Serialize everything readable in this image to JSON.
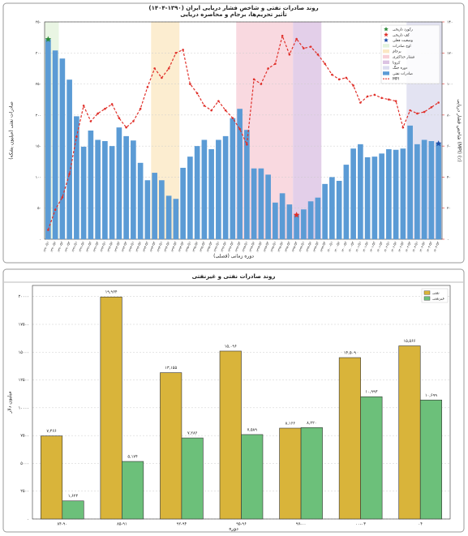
{
  "chart_data": [
    {
      "type": "combo",
      "title": "روند صادرات نفتی و شاخص فشار دریایی ایران (۱۳۹۰-۱۴۰۴)",
      "subtitle": "تأثیر تحریم‌ها، برجام و محاصره دریایی",
      "x_label": "دوره زمانی (فصلی)",
      "y_label": "صادرات نفتی (میلیون بشکه)",
      "y2_label": "شاخص فشار دریایی (MPI) (٪)",
      "categories": [
        "۱۳۹۰-Q۱",
        "۱۳۹۰-Q۲",
        "۱۳۹۰-Q۳",
        "۱۳۹۰-Q۴",
        "۱۳۹۱-Q۱",
        "۱۳۹۱-Q۲",
        "۱۳۹۱-Q۳",
        "۱۳۹۱-Q۴",
        "۱۳۹۲-Q۱",
        "۱۳۹۲-Q۲",
        "۱۳۹۲-Q۳",
        "۱۳۹۲-Q۴",
        "۱۳۹۳-Q۱",
        "۱۳۹۳-Q۲",
        "۱۳۹۳-Q۳",
        "۱۳۹۳-Q۴",
        "۱۳۹۴-Q۱",
        "۱۳۹۴-Q۲",
        "۱۳۹۴-Q۳",
        "۱۳۹۴-Q۴",
        "۱۳۹۵-Q۱",
        "۱۳۹۵-Q۲",
        "۱۳۹۵-Q۳",
        "۱۳۹۵-Q۴",
        "۱۳۹۶-Q۱",
        "۱۳۹۶-Q۲",
        "۱۳۹۶-Q۳",
        "۱۳۹۶-Q۴",
        "۱۳۹۷-Q۱",
        "۱۳۹۷-Q۲",
        "۱۳۹۷-Q۳",
        "۱۳۹۷-Q۴",
        "۱۳۹۸-Q۱",
        "۱۳۹۸-Q۲",
        "۱۳۹۸-Q۳",
        "۱۳۹۸-Q۴",
        "۱۳۹۹-Q۱",
        "۱۳۹۹-Q۲",
        "۱۳۹۹-Q۳",
        "۱۳۹۹-Q۴",
        "۱۴۰۰-Q۱",
        "۱۴۰۰-Q۲",
        "۱۴۰۰-Q۳",
        "۱۴۰۰-Q۴",
        "۱۴۰۱-Q۱",
        "۱۴۰۱-Q۲",
        "۱۴۰۱-Q۳",
        "۱۴۰۱-Q۴",
        "۱۴۰۲-Q۱",
        "۱۴۰۲-Q۲",
        "۱۴۰۲-Q۳",
        "۱۴۰۲-Q۴",
        "۱۴۰۳-Q۱",
        "۱۴۰۳-Q۲",
        "۱۴۰۳-Q۳",
        "۱۴۰۳-Q۴"
      ],
      "series": [
        {
          "name": "صادرات نفتی",
          "color": "#5b9bd5",
          "values": [
            322,
            304,
            291,
            257,
            198,
            149,
            175,
            160,
            158,
            150,
            180,
            166,
            159,
            123,
            95,
            107,
            95,
            70,
            65,
            115,
            133,
            150,
            160,
            145,
            160,
            166,
            195,
            210,
            176,
            114,
            114,
            104,
            59,
            74,
            56,
            39,
            48,
            61,
            67,
            89,
            100,
            94,
            120,
            146,
            153,
            132,
            133,
            138,
            145,
            144,
            146,
            183,
            153,
            160,
            158,
            154
          ]
        },
        {
          "name": "MPI",
          "color": "#e0302a",
          "axis": "y2",
          "values": [
            6,
            19,
            27,
            42,
            66,
            86,
            76,
            81,
            84,
            87,
            78,
            72,
            76,
            84,
            98,
            110,
            104,
            110,
            120,
            122,
            100,
            94,
            86,
            83,
            89,
            83,
            78,
            71,
            61,
            103,
            100,
            110,
            113,
            131,
            119,
            129,
            123,
            124,
            119,
            113,
            106,
            103,
            104,
            99,
            88,
            92,
            93,
            91,
            90,
            89,
            72,
            83,
            81,
            82,
            85,
            88
          ]
        }
      ],
      "ylim": [
        0,
        350
      ],
      "yticks": [
        {
          "value": 0,
          "label": "۰"
        },
        {
          "value": 50,
          "label": "۵۰"
        },
        {
          "value": 100,
          "label": "۱۰۰"
        },
        {
          "value": 150,
          "label": "۱۵۰"
        },
        {
          "value": 200,
          "label": "۲۰۰"
        },
        {
          "value": 250,
          "label": "۲۵۰"
        },
        {
          "value": 300,
          "label": "۳۰۰"
        },
        {
          "value": 350,
          "label": "۳۵۰"
        }
      ],
      "y2lim": [
        0,
        140
      ],
      "y2ticks": [
        {
          "value": 0,
          "label": "۰"
        },
        {
          "value": 20,
          "label": "۲۰"
        },
        {
          "value": 40,
          "label": "۴۰"
        },
        {
          "value": 60,
          "label": "۶۰"
        },
        {
          "value": 80,
          "label": "۸۰"
        },
        {
          "value": 100,
          "label": "۱۰۰"
        },
        {
          "value": 120,
          "label": "۱۲۰"
        },
        {
          "value": 140,
          "label": "۱۴۰"
        }
      ],
      "grid": true,
      "legend": "upper right",
      "periods": [
        {
          "name": "اوج صادرات",
          "color": "#e3f3dc",
          "from": "۱۳۹۰-Q۱",
          "to": "۱۳۹۰-Q۲"
        },
        {
          "name": "برجام",
          "color": "#fbe8c4",
          "from": "۱۳۹۳-Q۴",
          "to": "۱۳۹۴-Q۳"
        },
        {
          "name": "فشار حداکثری",
          "color": "#f7d0d8",
          "from": "۱۳۹۶-Q۴",
          "to": "۱۳۹۸-Q۳"
        },
        {
          "name": "کرونا",
          "color": "#dcc3e3",
          "from": "۱۳۹۸-Q۴",
          "to": "۱۳۹۹-Q۳"
        },
        {
          "name": "دوره جنگ",
          "color": "#dcdcef",
          "from": "۱۴۰۲-Q۴",
          "to": "۱۴۰۳-Q۴"
        }
      ],
      "markers": [
        {
          "name": "رکورد تاریخی",
          "color": "#2e8b3a",
          "category": "۱۳۹۰-Q۱"
        },
        {
          "name": "کف تاریخی",
          "color": "#e0302a",
          "category": "۱۳۹۸-Q۴"
        },
        {
          "name": "وضعیت فعلی",
          "color": "#1f4fa8",
          "category": "۱۴۰۳-Q۴"
        }
      ]
    },
    {
      "type": "bar",
      "title": "روند صادرات نفتی و غیرنفتی",
      "x_label": "دوره",
      "y_label": "میلیون دلار",
      "categories": [
        "۸۴-۹۰",
        "۸۵-۹۱",
        "۹۲-۹۴",
        "۹۵-۹۶",
        "۹۷-۰۰",
        "۰۰-۰۳",
        "۰۴"
      ],
      "series": [
        {
          "name": "نفتی",
          "color": "#d9b43a",
          "values": [
            7466,
            19964,
            13155,
            15096,
            8166,
            14509,
            15566
          ],
          "value_labels": [
            "۷,۴۶۶",
            "۱۹,۹۶۴",
            "۱۳,۱۵۵",
            "۱۵,۰۹۶",
            "۸,۱۶۶",
            "۱۴,۵۰۹",
            "۱۵,۵۶۶"
          ]
        },
        {
          "name": "غیرنفتی",
          "color": "#6cc07a",
          "values": [
            1624,
            5174,
            7286,
            7589,
            8220,
            10993,
            10699
          ],
          "value_labels": [
            "۱,۶۲۴",
            "۵,۱۷۴",
            "۷,۲۸۶",
            "۷,۵۸۹",
            "۸,۲۲۰",
            "۱۰,۹۹۳",
            "۱۰,۶۹۹"
          ]
        }
      ],
      "ylim": [
        0,
        21000
      ],
      "yticks": [
        {
          "value": 0,
          "label": "۰"
        },
        {
          "value": 2500,
          "label": "۲۵۰۰"
        },
        {
          "value": 5000,
          "label": "۵۰۰۰"
        },
        {
          "value": 7500,
          "label": "۷۵۰۰"
        },
        {
          "value": 10000,
          "label": "۱۰۰۰۰"
        },
        {
          "value": 12500,
          "label": "۱۲۵۰۰"
        },
        {
          "value": 15000,
          "label": "۱۵۰۰۰"
        },
        {
          "value": 17500,
          "label": "۱۷۵۰۰"
        },
        {
          "value": 20000,
          "label": "۲۰۰۰۰"
        }
      ],
      "grid": true,
      "legend": "upper right"
    }
  ]
}
